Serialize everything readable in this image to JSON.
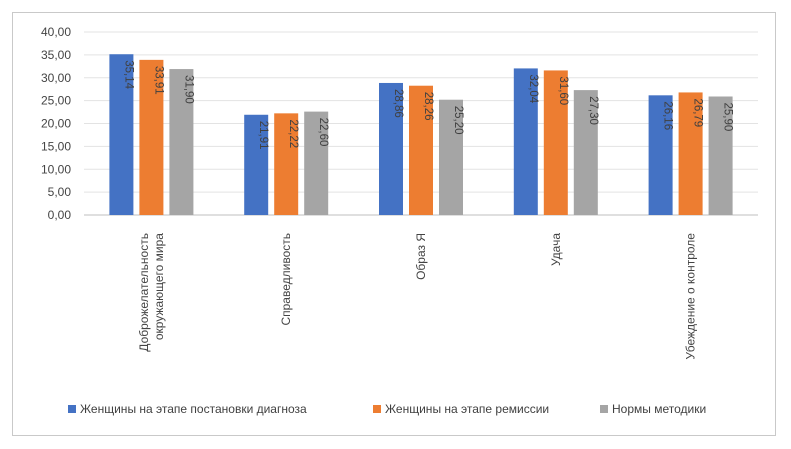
{
  "chart_data": {
    "type": "bar",
    "categories": [
      [
        "Доброжелательность",
        "окружающего мира"
      ],
      [
        "Справедливость"
      ],
      [
        "Образ Я"
      ],
      [
        "Удача"
      ],
      [
        "Убеждение о контроле"
      ]
    ],
    "series": [
      {
        "name": "Женщины на этапе постановки диагноза",
        "color": "#4472c4",
        "values": [
          35.14,
          21.91,
          28.86,
          32.04,
          26.16
        ],
        "labels": [
          "35,14",
          "21,91",
          "28,86",
          "32,04",
          "26,16"
        ]
      },
      {
        "name": "Женщины на этапе ремиссии",
        "color": "#ed7d31",
        "values": [
          33.91,
          22.22,
          28.26,
          31.6,
          26.79
        ],
        "labels": [
          "33,91",
          "22,22",
          "28,26",
          "31,60",
          "26,79"
        ]
      },
      {
        "name": "Нормы методики",
        "color": "#a5a5a5",
        "values": [
          31.9,
          22.6,
          25.2,
          27.3,
          25.9
        ],
        "labels": [
          "31,90",
          "22,60",
          "25,20",
          "27,30",
          "25,90"
        ]
      }
    ],
    "yticks": [
      "0,00",
      "5,00",
      "10,00",
      "15,00",
      "20,00",
      "25,00",
      "30,00",
      "35,00",
      "40,00"
    ],
    "ylim": [
      0,
      40
    ],
    "grid": true,
    "legend_position": "bottom",
    "data_labels": "inside-end, rotated"
  }
}
